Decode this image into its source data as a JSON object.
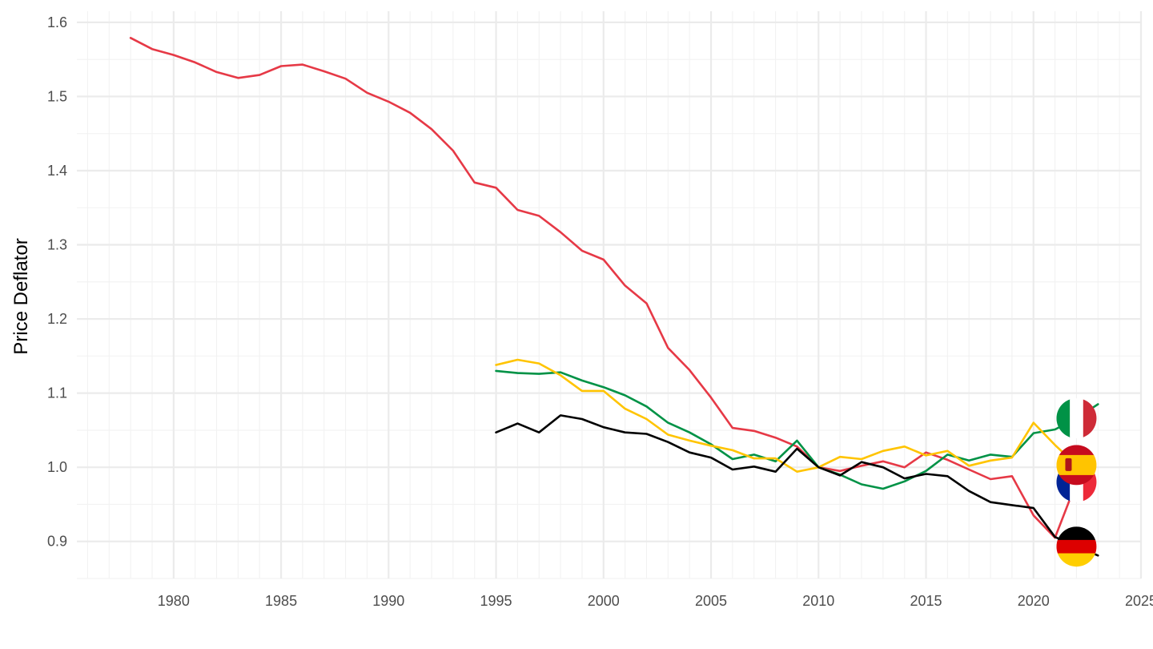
{
  "chart_data": {
    "type": "line",
    "title": "",
    "xlabel": "",
    "ylabel": "Price Deflator",
    "xlim": [
      1975.5,
      2025
    ],
    "ylim": [
      0.85,
      1.615
    ],
    "x_ticks": [
      "1980",
      "1985",
      "1990",
      "1995",
      "2000",
      "2005",
      "2010",
      "2015",
      "2020",
      "2025"
    ],
    "y_ticks": [
      "0.9",
      "1.0",
      "1.1",
      "1.2",
      "1.3",
      "1.4",
      "1.5",
      "1.6"
    ],
    "grid": true,
    "legend": "none",
    "series": [
      {
        "color": "#E63946",
        "flag": "france-flag",
        "x": [
          1978,
          1979,
          1980,
          1981,
          1982,
          1983,
          1984,
          1985,
          1986,
          1987,
          1988,
          1989,
          1990,
          1991,
          1992,
          1993,
          1994,
          1995,
          1996,
          1997,
          1998,
          1999,
          2000,
          2001,
          2002,
          2003,
          2004,
          2005,
          2006,
          2007,
          2008,
          2009,
          2010,
          2011,
          2012,
          2013,
          2014,
          2015,
          2016,
          2017,
          2018,
          2019,
          2020,
          2021,
          2022
        ],
        "y": [
          1.579,
          1.564,
          1.556,
          1.546,
          1.533,
          1.525,
          1.529,
          1.541,
          1.543,
          1.534,
          1.524,
          1.505,
          1.493,
          1.478,
          1.456,
          1.427,
          1.384,
          1.377,
          1.347,
          1.339,
          1.317,
          1.292,
          1.28,
          1.245,
          1.221,
          1.161,
          1.131,
          1.094,
          1.053,
          1.049,
          1.04,
          1.028,
          1.0,
          0.995,
          1.002,
          1.008,
          1.0,
          1.02,
          1.01,
          0.997,
          0.984,
          0.988,
          0.935,
          0.905,
          0.98
        ]
      },
      {
        "color": "#009246",
        "flag": "italy-flag",
        "x": [
          1995,
          1996,
          1997,
          1998,
          1999,
          2000,
          2001,
          2002,
          2003,
          2004,
          2005,
          2006,
          2007,
          2008,
          2009,
          2010,
          2011,
          2012,
          2013,
          2014,
          2015,
          2016,
          2017,
          2018,
          2019,
          2020,
          2021,
          2022,
          2023
        ],
        "y": [
          1.13,
          1.127,
          1.126,
          1.128,
          1.117,
          1.108,
          1.097,
          1.082,
          1.06,
          1.047,
          1.031,
          1.011,
          1.017,
          1.008,
          1.036,
          1.0,
          0.99,
          0.977,
          0.971,
          0.981,
          0.995,
          1.017,
          1.009,
          1.017,
          1.014,
          1.046,
          1.051,
          1.066,
          1.085
        ]
      },
      {
        "color": "#FFC400",
        "flag": "spain-flag",
        "x": [
          1995,
          1996,
          1997,
          1998,
          1999,
          2000,
          2001,
          2002,
          2003,
          2004,
          2005,
          2006,
          2007,
          2008,
          2009,
          2010,
          2011,
          2012,
          2013,
          2014,
          2015,
          2016,
          2017,
          2018,
          2019,
          2020,
          2021,
          2022
        ],
        "y": [
          1.138,
          1.145,
          1.14,
          1.124,
          1.103,
          1.103,
          1.079,
          1.065,
          1.044,
          1.036,
          1.029,
          1.023,
          1.012,
          1.012,
          0.994,
          1.0,
          1.014,
          1.011,
          1.022,
          1.028,
          1.016,
          1.022,
          1.002,
          1.009,
          1.013,
          1.06,
          1.03,
          1.003
        ]
      },
      {
        "color": "#000000",
        "flag": "germany-flag",
        "x": [
          1995,
          1996,
          1997,
          1998,
          1999,
          2000,
          2001,
          2002,
          2003,
          2004,
          2005,
          2006,
          2007,
          2008,
          2009,
          2010,
          2011,
          2012,
          2013,
          2014,
          2015,
          2016,
          2017,
          2018,
          2019,
          2020,
          2021,
          2022,
          2023
        ],
        "y": [
          1.047,
          1.059,
          1.047,
          1.07,
          1.065,
          1.054,
          1.047,
          1.045,
          1.034,
          1.02,
          1.013,
          0.997,
          1.001,
          0.994,
          1.025,
          1.0,
          0.989,
          1.007,
          1.0,
          0.985,
          0.991,
          0.988,
          0.968,
          0.953,
          0.949,
          0.945,
          0.906,
          0.893,
          0.881
        ]
      }
    ]
  },
  "flags": {
    "italy": [
      "#009246",
      "#ffffff",
      "#CE2B37"
    ],
    "spain": [
      "#C60B1E",
      "#FFC400"
    ],
    "france": [
      "#002395",
      "#ffffff",
      "#ED2939"
    ],
    "germany": [
      "#000000",
      "#DD0000",
      "#FFCE00"
    ]
  }
}
